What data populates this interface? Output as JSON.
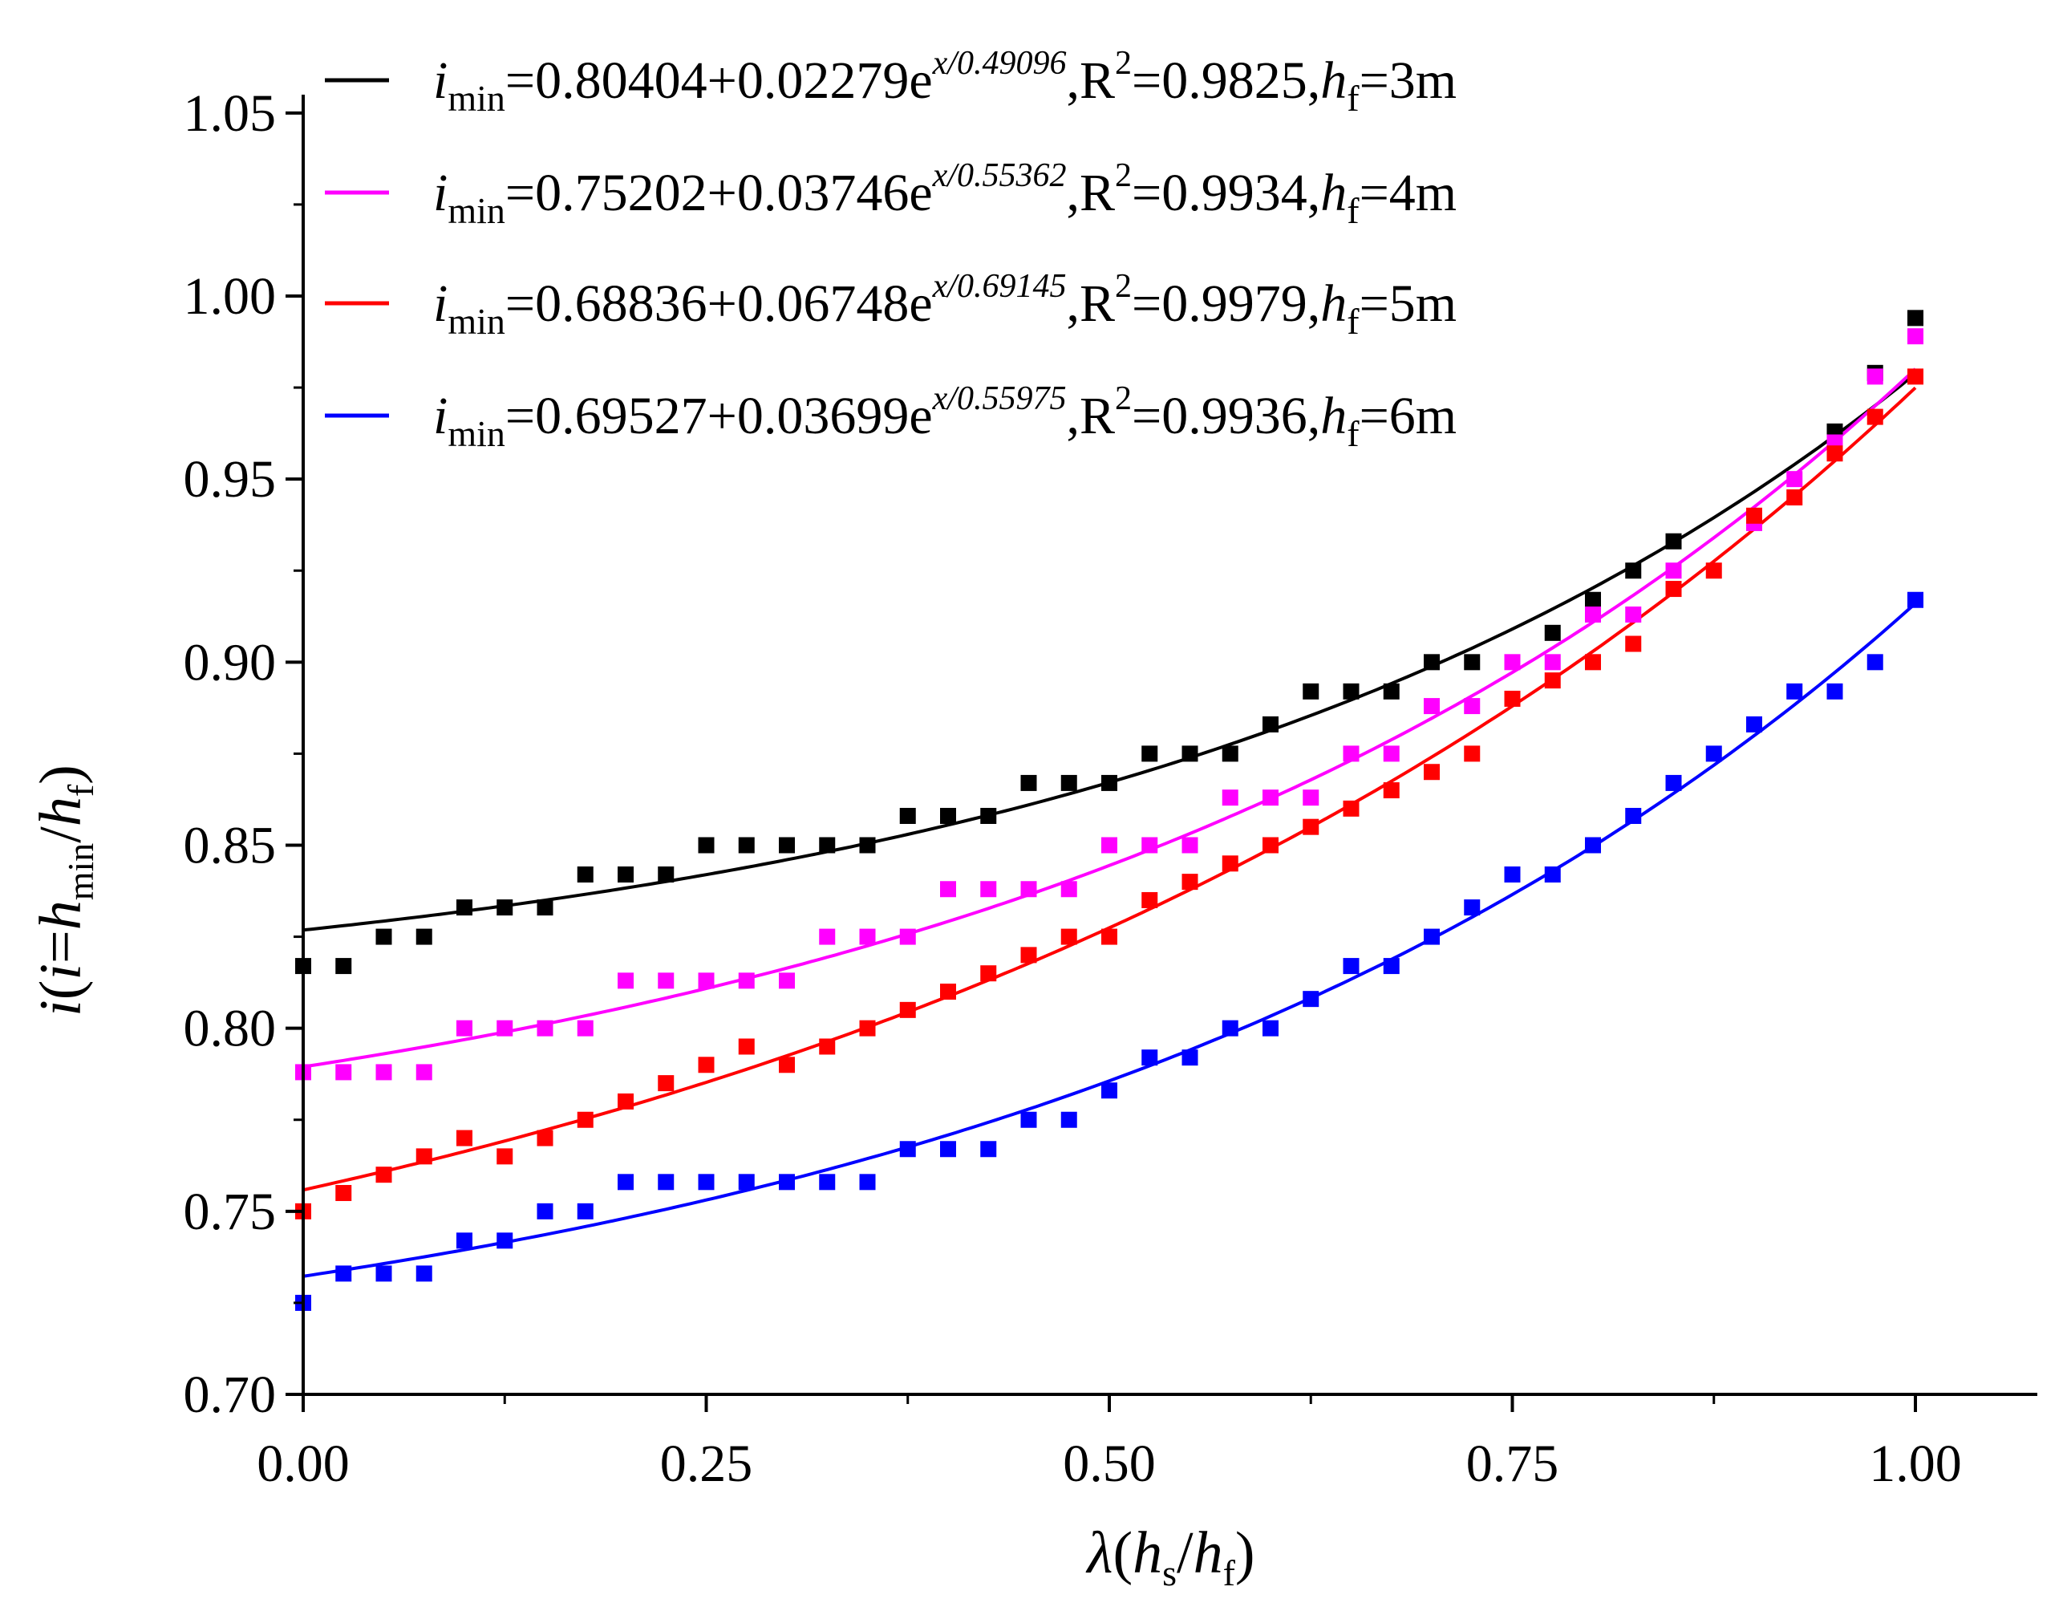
{
  "chart_data": {
    "type": "scatter",
    "title": "",
    "xlabel": {
      "sym": "λ",
      "open": "(",
      "h": "h",
      "s_sub": "s",
      "slash": "/",
      "h2": "h",
      "f_sub": "f",
      "close": ")"
    },
    "ylabel": {
      "i": "i",
      "open": "(",
      "i2": "i",
      "eq": "=",
      "h": "h",
      "min_sub": "min",
      "slash": "/",
      "h2": "h",
      "f_sub": "f",
      "close": ")"
    },
    "xlim": [
      0,
      1.08
    ],
    "ylim": [
      0.7,
      1.055
    ],
    "xticks": [
      0,
      0.25,
      0.5,
      0.75,
      1.0
    ],
    "xtick_labels": [
      "0.00",
      "0.25",
      "0.50",
      "0.75",
      "1.00"
    ],
    "yticks": [
      0.7,
      0.75,
      0.8,
      0.85,
      0.9,
      0.95,
      1.0,
      1.05
    ],
    "ytick_labels": [
      "0.70",
      "0.75",
      "0.80",
      "0.85",
      "0.90",
      "0.95",
      "1.00",
      "1.05"
    ],
    "x": [
      0,
      0.025,
      0.05,
      0.075,
      0.1,
      0.125,
      0.15,
      0.175,
      0.2,
      0.225,
      0.25,
      0.275,
      0.3,
      0.325,
      0.35,
      0.375,
      0.4,
      0.425,
      0.45,
      0.475,
      0.5,
      0.525,
      0.55,
      0.575,
      0.6,
      0.625,
      0.65,
      0.675,
      0.7,
      0.725,
      0.75,
      0.775,
      0.8,
      0.825,
      0.85,
      0.875,
      0.9,
      0.925,
      0.95,
      0.975,
      1.0
    ],
    "series": [
      {
        "name": "hf=3m",
        "color": "#000000",
        "legend": {
          "i": "i",
          "sub": "min",
          "eq": "=0.80404+0.02279e",
          "exp": "x/0.49096",
          "r": ",R",
          "r2": "2",
          "rv": "=0.9825,",
          "h": "h",
          "hsub": "f",
          "hv": "=3m"
        },
        "fit": {
          "y0": 0.80404,
          "a": 0.02279,
          "t": 0.49096
        },
        "values": [
          0.817,
          0.817,
          0.825,
          0.825,
          0.833,
          0.833,
          0.833,
          0.842,
          0.842,
          0.842,
          0.85,
          0.85,
          0.85,
          0.85,
          0.85,
          0.858,
          0.858,
          0.858,
          0.867,
          0.867,
          0.867,
          0.875,
          0.875,
          0.875,
          0.883,
          0.892,
          0.892,
          0.892,
          0.9,
          0.9,
          null,
          0.908,
          0.917,
          0.925,
          0.933,
          null,
          null,
          null,
          0.963,
          0.979,
          0.994
        ]
      },
      {
        "name": "hf=4m",
        "color": "#ff00ff",
        "legend": {
          "i": "i",
          "sub": "min",
          "eq": "=0.75202+0.03746e",
          "exp": "x/0.55362",
          "r": ",R",
          "r2": "2",
          "rv": "=0.9934,",
          "h": "h",
          "hsub": "f",
          "hv": "=4m"
        },
        "fit": {
          "y0": 0.75202,
          "a": 0.03746,
          "t": 0.55362
        },
        "values": [
          0.788,
          0.788,
          0.788,
          0.788,
          0.8,
          0.8,
          0.8,
          0.8,
          0.813,
          0.813,
          0.813,
          0.813,
          0.813,
          0.825,
          0.825,
          0.825,
          0.838,
          0.838,
          0.838,
          0.838,
          0.85,
          0.85,
          0.85,
          0.863,
          0.863,
          0.863,
          0.875,
          0.875,
          0.888,
          0.888,
          0.9,
          0.9,
          0.913,
          0.913,
          0.925,
          null,
          0.938,
          0.95,
          0.96,
          0.978,
          0.989
        ]
      },
      {
        "name": "hf=5m",
        "color": "#ff0000",
        "legend": {
          "i": "i",
          "sub": "min",
          "eq": "=0.68836+0.06748e",
          "exp": "x/0.69145",
          "r": ",R",
          "r2": "2",
          "rv": "=0.9979,",
          "h": "h",
          "hsub": "f",
          "hv": "=5m"
        },
        "fit": {
          "y0": 0.68836,
          "a": 0.06748,
          "t": 0.69145
        },
        "values": [
          0.75,
          0.755,
          0.76,
          0.765,
          0.77,
          0.765,
          0.77,
          0.775,
          0.78,
          0.785,
          0.79,
          0.795,
          0.79,
          0.795,
          0.8,
          0.805,
          0.81,
          0.815,
          0.82,
          0.825,
          0.825,
          0.835,
          0.84,
          0.845,
          0.85,
          0.855,
          0.86,
          0.865,
          0.87,
          0.875,
          0.89,
          0.895,
          0.9,
          0.905,
          0.92,
          0.925,
          0.94,
          0.945,
          0.957,
          0.967,
          0.978
        ]
      },
      {
        "name": "hf=6m",
        "color": "#0000ff",
        "legend": {
          "i": "i",
          "sub": "min",
          "eq": "=0.69527+0.03699e",
          "exp": "x/0.55975",
          "r": ",R",
          "r2": "2",
          "rv": "=0.9936,",
          "h": "h",
          "hsub": "f",
          "hv": "=6m"
        },
        "fit": {
          "y0": 0.69527,
          "a": 0.03699,
          "t": 0.55975
        },
        "values": [
          0.725,
          0.733,
          0.733,
          0.733,
          0.742,
          0.742,
          0.75,
          0.75,
          0.758,
          0.758,
          0.758,
          0.758,
          0.758,
          0.758,
          0.758,
          0.767,
          0.767,
          0.767,
          0.775,
          0.775,
          0.783,
          0.792,
          0.792,
          0.8,
          0.8,
          0.808,
          0.817,
          0.817,
          0.825,
          0.833,
          0.842,
          0.842,
          0.85,
          0.858,
          0.867,
          0.875,
          0.883,
          0.892,
          0.892,
          0.9,
          0.917
        ]
      }
    ]
  }
}
